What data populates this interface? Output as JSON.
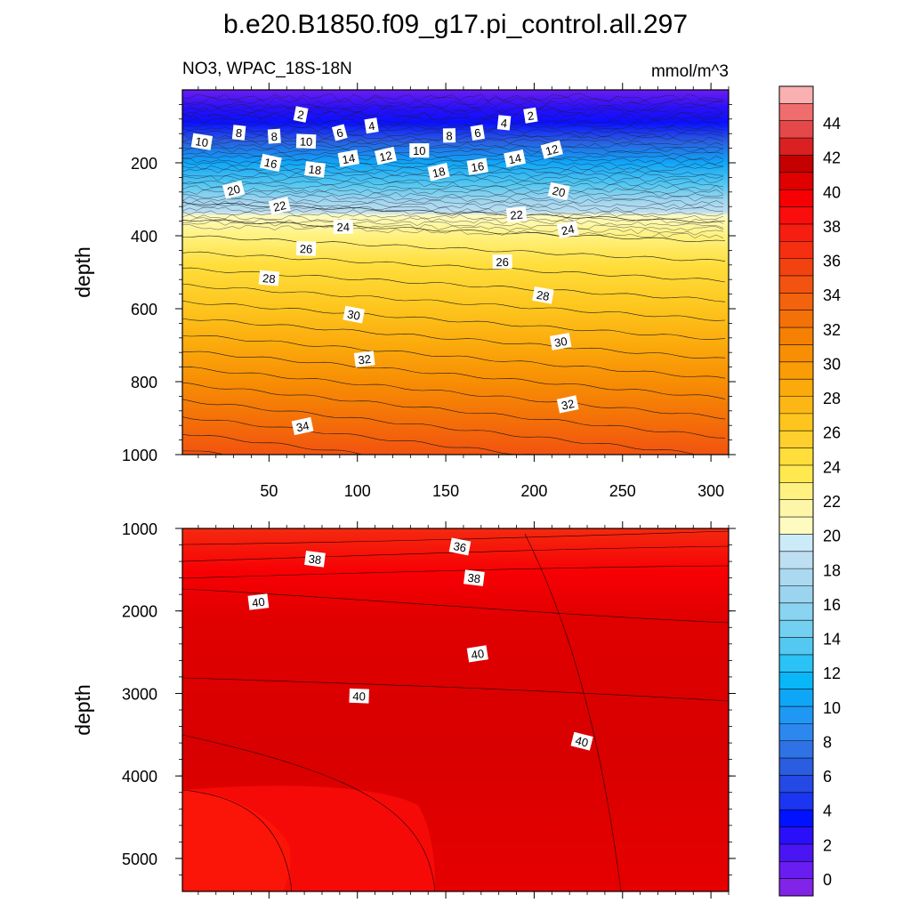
{
  "title": "b.e20.B1850.f09_g17.pi_control.all.297",
  "subtitle_left": "NO3, WPAC_18S-18N",
  "subtitle_right": "mmol/m^3",
  "chart_data": [
    {
      "panel": "upper",
      "type": "contour",
      "variable": "NO3",
      "units": "mmol/m^3",
      "ylabel": "depth",
      "xlabel": "",
      "xlim": [
        1,
        310
      ],
      "ylim": [
        1000,
        0
      ],
      "x_ticks": [
        50,
        100,
        150,
        200,
        250,
        300
      ],
      "y_ticks": [
        200,
        400,
        600,
        800,
        1000
      ],
      "y_tick_labels": [
        "200",
        "400",
        "600",
        "800",
        "1000"
      ],
      "contour_interval": 2,
      "contour_labels": [
        {
          "text": "2",
          "x": 68,
          "depth": 67
        },
        {
          "text": "4",
          "x": 108,
          "depth": 98
        },
        {
          "text": "6",
          "x": 90,
          "depth": 117
        },
        {
          "text": "8",
          "x": 33,
          "depth": 117
        },
        {
          "text": "8",
          "x": 53,
          "depth": 127
        },
        {
          "text": "10",
          "x": 12,
          "depth": 142
        },
        {
          "text": "10",
          "x": 71,
          "depth": 141
        },
        {
          "text": "14",
          "x": 95,
          "depth": 188
        },
        {
          "text": "12",
          "x": 116,
          "depth": 181
        },
        {
          "text": "10",
          "x": 135,
          "depth": 166
        },
        {
          "text": "8",
          "x": 152,
          "depth": 125
        },
        {
          "text": "6",
          "x": 168,
          "depth": 117
        },
        {
          "text": "4",
          "x": 183,
          "depth": 90
        },
        {
          "text": "2",
          "x": 198,
          "depth": 70
        },
        {
          "text": "12",
          "x": 210,
          "depth": 164
        },
        {
          "text": "14",
          "x": 189,
          "depth": 188
        },
        {
          "text": "16",
          "x": 51,
          "depth": 200
        },
        {
          "text": "18",
          "x": 76,
          "depth": 218
        },
        {
          "text": "16",
          "x": 168,
          "depth": 210
        },
        {
          "text": "18",
          "x": 146,
          "depth": 225
        },
        {
          "text": "20",
          "x": 30,
          "depth": 274
        },
        {
          "text": "20",
          "x": 214,
          "depth": 278
        },
        {
          "text": "22",
          "x": 56,
          "depth": 318
        },
        {
          "text": "22",
          "x": 190,
          "depth": 342
        },
        {
          "text": "24",
          "x": 92,
          "depth": 375
        },
        {
          "text": "24",
          "x": 219,
          "depth": 383
        },
        {
          "text": "26",
          "x": 71,
          "depth": 435
        },
        {
          "text": "26",
          "x": 182,
          "depth": 471
        },
        {
          "text": "28",
          "x": 50,
          "depth": 516
        },
        {
          "text": "28",
          "x": 205,
          "depth": 563
        },
        {
          "text": "30",
          "x": 98,
          "depth": 616
        },
        {
          "text": "30",
          "x": 215,
          "depth": 690
        },
        {
          "text": "32",
          "x": 104,
          "depth": 738
        },
        {
          "text": "32",
          "x": 219,
          "depth": 862
        },
        {
          "text": "34",
          "x": 69,
          "depth": 922
        }
      ]
    },
    {
      "panel": "lower",
      "type": "contour",
      "variable": "NO3",
      "units": "mmol/m^3",
      "ylabel": "depth",
      "xlabel": "",
      "xlim": [
        1,
        310
      ],
      "ylim": [
        5400,
        1000
      ],
      "y_ticks": [
        1000,
        2000,
        3000,
        4000,
        5000
      ],
      "y_tick_labels": [
        "1000",
        "2000",
        "3000",
        "4000",
        "5000"
      ],
      "contour_interval": 2,
      "contour_labels": [
        {
          "text": "36",
          "x": 158,
          "depth": 1220
        },
        {
          "text": "38",
          "x": 76,
          "depth": 1370
        },
        {
          "text": "38",
          "x": 166,
          "depth": 1600
        },
        {
          "text": "40",
          "x": 44,
          "depth": 1890
        },
        {
          "text": "40",
          "x": 168,
          "depth": 2520
        },
        {
          "text": "40",
          "x": 101,
          "depth": 3030
        },
        {
          "text": "40",
          "x": 227,
          "depth": 3580
        }
      ]
    }
  ],
  "colorbar": {
    "levels": [
      0,
      2,
      4,
      6,
      8,
      10,
      12,
      14,
      16,
      18,
      20,
      22,
      24,
      26,
      28,
      30,
      32,
      34,
      36,
      38,
      40,
      42,
      44
    ],
    "labels": [
      "0",
      "2",
      "4",
      "6",
      "8",
      "10",
      "12",
      "14",
      "16",
      "18",
      "20",
      "22",
      "24",
      "26",
      "28",
      "30",
      "32",
      "34",
      "36",
      "38",
      "40",
      "42",
      "44"
    ],
    "colors": [
      "#8124e8",
      "#6a1df0",
      "#4a15f3",
      "#2a10f8",
      "#0012ff",
      "#1b35f0",
      "#2549e4",
      "#2a5de0",
      "#2f72e6",
      "#2c88ef",
      "#1e98f4",
      "#10a6f7",
      "#09b6f8",
      "#2bc2f5",
      "#55c8f1",
      "#73d0f1",
      "#8ad3f1",
      "#9bd4ef",
      "#abd9ef",
      "#bedff1",
      "#ccebf8",
      "#fdfbc0",
      "#fdf6a8",
      "#fff280",
      "#ffe94f",
      "#ffde3c",
      "#fecf2d",
      "#fdc51d",
      "#fcb714",
      "#fbaa0c",
      "#f99c05",
      "#f78e04",
      "#f58004",
      "#f47108",
      "#f3620d",
      "#f25310",
      "#f24210",
      "#f43010",
      "#f61e10",
      "#f90e0d",
      "#f70004",
      "#e00000",
      "#c40000",
      "#da2020",
      "#e44848",
      "#f06d6d",
      "#fab0b0"
    ]
  }
}
